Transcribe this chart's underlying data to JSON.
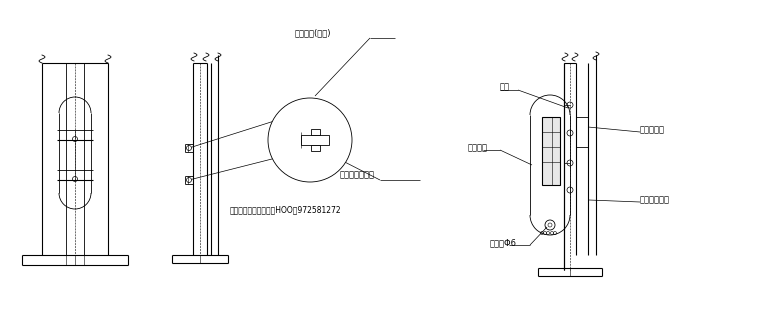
{
  "bg_color": "#ffffff",
  "lc": "#000000",
  "annotations": {
    "label1": "配电门盖(防水)",
    "label2": "圆头内三角虥丝",
    "label3": "中国市政工程电气装备HOO号972581272",
    "label4": "活叶",
    "label5": "配电门盖",
    "label6": "路灯接线盒",
    "label7": "门锁强Φ6",
    "label8": "专用接地螺栓"
  }
}
